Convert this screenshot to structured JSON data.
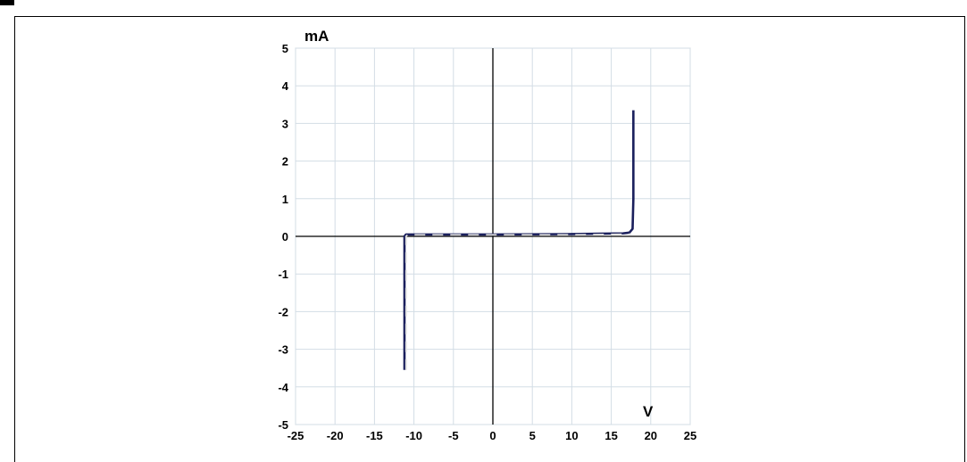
{
  "chart_data": {
    "type": "line",
    "ylabel": "mA",
    "xlabel": "V",
    "xlim": [
      -25,
      25
    ],
    "ylim": [
      -5,
      5
    ],
    "x_ticks": [
      "-25",
      "-20",
      "-15",
      "-10",
      "-5",
      "0",
      "5",
      "10",
      "15",
      "20",
      "25"
    ],
    "y_ticks": [
      "5",
      "4",
      "3",
      "2",
      "1",
      "0",
      "-1",
      "-2",
      "-3",
      "-4",
      "-5"
    ],
    "grid": true,
    "series": [
      {
        "style": "solid",
        "color": "#1a1f5c",
        "x": [
          -11.2,
          -11.2,
          -11.0,
          0,
          10,
          16.5,
          17.3,
          17.7,
          17.8,
          17.8
        ],
        "y": [
          -3.55,
          0.0,
          0.05,
          0.05,
          0.06,
          0.08,
          0.1,
          0.2,
          1.0,
          3.35
        ]
      },
      {
        "style": "dashed",
        "color": "#dcdcdc",
        "x": [
          -11.0,
          -11.0,
          -10.8,
          0,
          10,
          17.5
        ],
        "y": [
          -3.55,
          0.0,
          0.04,
          0.04,
          0.04,
          0.06
        ]
      }
    ]
  }
}
